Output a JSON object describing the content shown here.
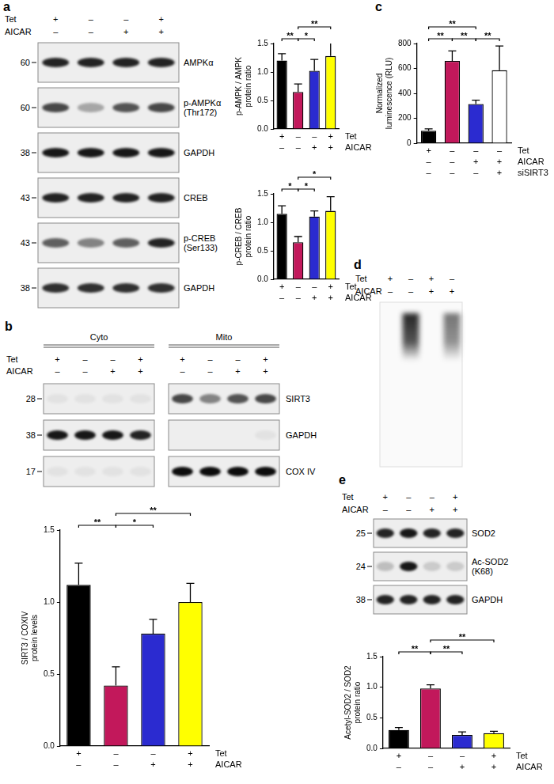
{
  "panel_labels": [
    "a",
    "b",
    "c",
    "d",
    "e"
  ],
  "chart_data": [
    {
      "type": "bar",
      "y_label": [
        "p-AMPK / AMPK",
        "protein ratio"
      ],
      "x_rows": [
        {
          "name": "Tet",
          "signs": [
            "+",
            "–",
            "–",
            "+"
          ]
        },
        {
          "name": "AICAR",
          "signs": [
            "–",
            "–",
            "+",
            "+"
          ]
        }
      ],
      "values": [
        1.2,
        0.65,
        1.02,
        1.28
      ],
      "errors": [
        0.12,
        0.14,
        0.2,
        0.25
      ],
      "colors": [
        "#000000",
        "#c2185b",
        "#2b2bd0",
        "#ffff00"
      ],
      "ylim": [
        0,
        1.5
      ],
      "yticks": [
        {
          "value": 0,
          "label": "0.0"
        },
        0.5,
        {
          "value": 1,
          "label": "1.0"
        },
        1.5
      ],
      "grid": false,
      "significance": [
        {
          "from": 0,
          "to": 1,
          "label": "**"
        },
        {
          "from": 1,
          "to": 2,
          "label": "*"
        },
        {
          "from": 1,
          "to": 3,
          "label": "**"
        }
      ]
    },
    {
      "type": "bar",
      "y_label": [
        "p-CREB / CREB",
        "protein ratio"
      ],
      "x_rows": [
        {
          "name": "Tet",
          "signs": [
            "+",
            "–",
            "–",
            "+"
          ]
        },
        {
          "name": "AICAR",
          "signs": [
            "–",
            "–",
            "+",
            "+"
          ]
        }
      ],
      "values": [
        1.15,
        0.65,
        1.1,
        1.2
      ],
      "errors": [
        0.14,
        0.1,
        0.1,
        0.25
      ],
      "colors": [
        "#000000",
        "#c2185b",
        "#2b2bd0",
        "#ffff00"
      ],
      "ylim": [
        0,
        1.5
      ],
      "yticks": [
        {
          "value": 0,
          "label": "0.0"
        },
        0.5,
        {
          "value": 1,
          "label": "1.0"
        },
        1.5
      ],
      "grid": false,
      "significance": [
        {
          "from": 0,
          "to": 1,
          "label": "*"
        },
        {
          "from": 1,
          "to": 2,
          "label": "*"
        },
        {
          "from": 1,
          "to": 3,
          "label": "*"
        }
      ]
    },
    {
      "type": "bar",
      "y_label": [
        "SIRT3 / COXIV",
        "protein levels"
      ],
      "x_rows": [
        {
          "name": "Tet",
          "signs": [
            "+",
            "–",
            "–",
            "+"
          ]
        },
        {
          "name": "AICAR",
          "signs": [
            "–",
            "–",
            "+",
            "+"
          ]
        }
      ],
      "values": [
        1.12,
        0.42,
        0.78,
        1.0
      ],
      "errors": [
        0.15,
        0.13,
        0.1,
        0.13
      ],
      "colors": [
        "#000000",
        "#c2185b",
        "#2b2bd0",
        "#ffff00"
      ],
      "ylim": [
        0,
        1.5
      ],
      "yticks": [
        {
          "value": 0,
          "label": "0.0"
        },
        0.5,
        {
          "value": 1,
          "label": "1.0"
        },
        1.5
      ],
      "grid": false,
      "significance": [
        {
          "from": 0,
          "to": 1,
          "label": "**"
        },
        {
          "from": 1,
          "to": 2,
          "label": "*"
        },
        {
          "from": 1,
          "to": 3,
          "label": "**"
        }
      ]
    },
    {
      "type": "bar",
      "y_label": [
        "Normalized",
        "luminescence (RLU)"
      ],
      "x_rows": [
        {
          "name": "Tet",
          "signs": [
            "+",
            "–",
            "–",
            "–"
          ]
        },
        {
          "name": "AICAR",
          "signs": [
            "–",
            "–",
            "+",
            "+"
          ]
        },
        {
          "name": "siSIRT3",
          "signs": [
            "–",
            "–",
            "–",
            "+"
          ]
        }
      ],
      "values": [
        100,
        660,
        315,
        585
      ],
      "errors": [
        15,
        80,
        30,
        195
      ],
      "colors": [
        "#000000",
        "#c2185b",
        "#2b2bd0",
        "#ffffff"
      ],
      "ylim": [
        0,
        800
      ],
      "yticks": [
        0,
        200,
        400,
        600,
        800
      ],
      "grid": false,
      "significance": [
        {
          "from": 0,
          "to": 1,
          "label": "**"
        },
        {
          "from": 1,
          "to": 2,
          "label": "**"
        },
        {
          "from": 0,
          "to": 2,
          "label": "**"
        },
        {
          "from": 2,
          "to": 3,
          "label": "**"
        }
      ]
    },
    {
      "type": "bar",
      "y_label": [
        "Acetyl-SOD2 / SOD2",
        "protein ratio"
      ],
      "x_rows": [
        {
          "name": "Tet",
          "signs": [
            "+",
            "–",
            "–",
            "+"
          ]
        },
        {
          "name": "AICAR",
          "signs": [
            "–",
            "–",
            "+",
            "+"
          ]
        }
      ],
      "values": [
        0.3,
        0.98,
        0.22,
        0.25
      ],
      "errors": [
        0.04,
        0.06,
        0.05,
        0.03
      ],
      "colors": [
        "#000000",
        "#c2185b",
        "#2b2bd0",
        "#ffff00"
      ],
      "ylim": [
        0,
        1.5
      ],
      "yticks": [
        {
          "value": 0,
          "label": "0.0"
        },
        0.5,
        {
          "value": 1,
          "label": "1.0"
        },
        1.5
      ],
      "grid": false,
      "significance": [
        {
          "from": 0,
          "to": 1,
          "label": "**"
        },
        {
          "from": 1,
          "to": 2,
          "label": "**"
        },
        {
          "from": 1,
          "to": 3,
          "label": "**"
        }
      ]
    }
  ],
  "blots": [
    {
      "panel": "a",
      "lanes": [
        {
          "name": "Tet",
          "signs": [
            "+",
            "–",
            "–",
            "+"
          ]
        },
        {
          "name": "AICAR",
          "signs": [
            "–",
            "–",
            "+",
            "+"
          ]
        }
      ],
      "rows": [
        {
          "label": [
            "AMPKα"
          ],
          "mw": 60,
          "intensity": [
            0.85,
            0.85,
            0.85,
            0.85
          ]
        },
        {
          "label": [
            "p-AMPKα",
            "(Thr172)"
          ],
          "mw": 60,
          "intensity": [
            0.7,
            0.3,
            0.65,
            0.7
          ]
        },
        {
          "label": [
            "GAPDH"
          ],
          "mw": 38,
          "intensity": [
            0.9,
            0.9,
            0.9,
            0.9
          ]
        },
        {
          "label": [
            "CREB"
          ],
          "mw": 43,
          "intensity": [
            0.85,
            0.85,
            0.85,
            0.85
          ]
        },
        {
          "label": [
            "p-CREB",
            "(Ser133)"
          ],
          "mw": 43,
          "intensity": [
            0.6,
            0.45,
            0.6,
            0.85
          ]
        },
        {
          "label": [
            "GAPDH"
          ],
          "mw": 38,
          "intensity": [
            0.8,
            0.8,
            0.8,
            0.8
          ]
        }
      ]
    },
    {
      "panel": "b",
      "groups": [
        "Cyto",
        "Mito"
      ],
      "lanes": [
        {
          "name": "Tet",
          "signs": [
            "+",
            "–",
            "–",
            "+",
            "+",
            "–",
            "–",
            "+"
          ]
        },
        {
          "name": "AICAR",
          "signs": [
            "–",
            "–",
            "+",
            "+",
            "–",
            "–",
            "+",
            "+"
          ]
        }
      ],
      "rows": [
        {
          "label": [
            "SIRT3"
          ],
          "mw": 28,
          "intensity": [
            0.05,
            0.05,
            0.05,
            0.05,
            0.7,
            0.45,
            0.65,
            0.7
          ]
        },
        {
          "label": [
            "GAPDH"
          ],
          "mw": 38,
          "intensity": [
            0.9,
            0.9,
            0.9,
            0.85,
            0,
            0,
            0,
            0.05
          ]
        },
        {
          "label": [
            "COX IV"
          ],
          "mw": 17,
          "intensity": [
            0.05,
            0.05,
            0.05,
            0.05,
            0.95,
            0.95,
            0.95,
            0.95
          ]
        }
      ]
    },
    {
      "panel": "e",
      "lanes": [
        {
          "name": "Tet",
          "signs": [
            "+",
            "–",
            "–",
            "+"
          ]
        },
        {
          "name": "AICAR",
          "signs": [
            "–",
            "–",
            "+",
            "+"
          ]
        }
      ],
      "rows": [
        {
          "label": [
            "SOD2"
          ],
          "mw": 25,
          "intensity": [
            0.85,
            0.9,
            0.85,
            0.85
          ]
        },
        {
          "label": [
            "Ac-SOD2",
            "(K68)"
          ],
          "mw": 24,
          "intensity": [
            0.2,
            0.9,
            0.15,
            0.15
          ]
        },
        {
          "label": [
            "GAPDH"
          ],
          "mw": 38,
          "intensity": [
            0.85,
            0.85,
            0.85,
            0.85
          ]
        }
      ]
    }
  ],
  "gel": {
    "panel": "d",
    "lanes": [
      {
        "name": "Tet",
        "signs": [
          "+",
          "–",
          "+",
          "–"
        ]
      },
      {
        "name": "AICAR",
        "signs": [
          "–",
          "–",
          "+",
          "+"
        ]
      }
    ],
    "smear": [
      0,
      0.95,
      0,
      0.6
    ]
  }
}
